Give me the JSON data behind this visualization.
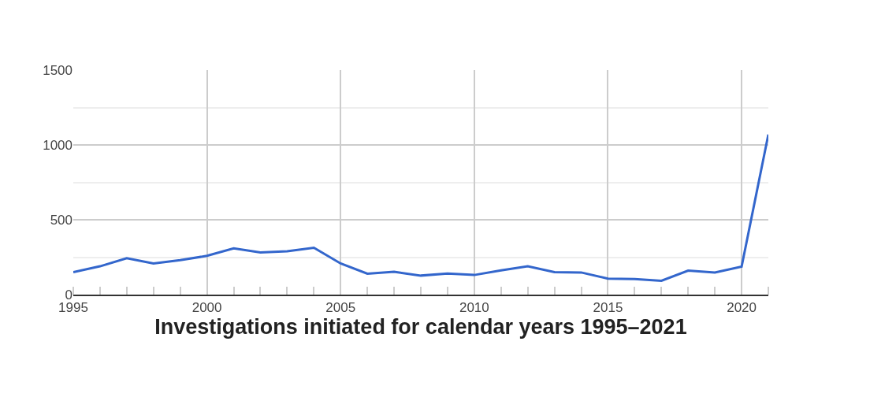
{
  "chart_data": {
    "type": "line",
    "xlabel": "Investigations initiated for calendar years 1995–2021",
    "x": [
      1995,
      1996,
      1997,
      1998,
      1999,
      2000,
      2001,
      2002,
      2003,
      2004,
      2005,
      2006,
      2007,
      2008,
      2009,
      2010,
      2011,
      2012,
      2013,
      2014,
      2015,
      2016,
      2017,
      2018,
      2019,
      2020,
      2021
    ],
    "series": [
      {
        "color": "#3366cc",
        "values": [
          150,
          189,
          243,
          208,
          230,
          259,
          309,
          282,
          290,
          313,
          208,
          140,
          152,
          127,
          141,
          131,
          162,
          189,
          150,
          148,
          107,
          104,
          92,
          160,
          148,
          187,
          1070
        ]
      }
    ],
    "xlim": [
      1995,
      2021
    ],
    "xticks": [
      1995,
      2000,
      2005,
      2010,
      2015,
      2020
    ],
    "ylim": [
      0,
      1500
    ],
    "yticks": [
      0,
      500,
      1000,
      1500
    ],
    "grid": true,
    "marker": "none",
    "line_style": "solid"
  }
}
